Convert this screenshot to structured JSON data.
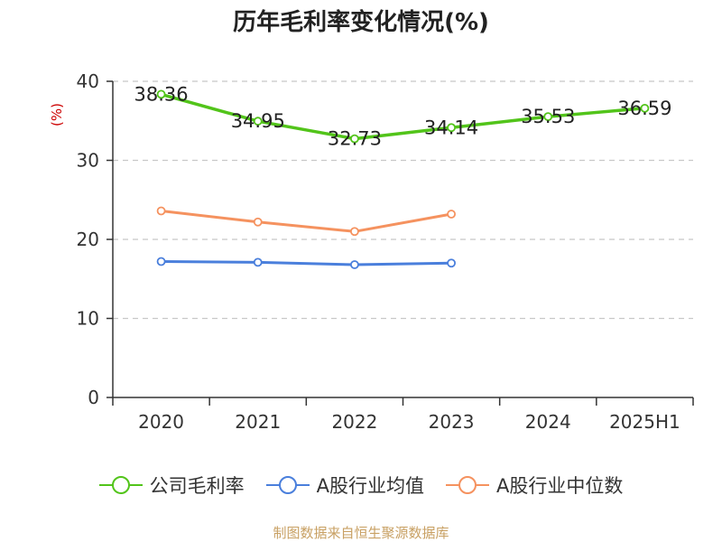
{
  "chart_data": {
    "type": "line",
    "title": "历年毛利率变化情况(%)",
    "ylabel": "(%)",
    "categories": [
      "2020",
      "2021",
      "2022",
      "2023",
      "2024",
      "2025H1"
    ],
    "ylim": [
      0,
      40
    ],
    "yticks": [
      0,
      10,
      20,
      30,
      40
    ],
    "grid": true,
    "legend_position": "bottom",
    "series": [
      {
        "name": "公司毛利率",
        "color": "#52c41a",
        "values": [
          38.36,
          34.95,
          32.73,
          34.14,
          35.53,
          36.59
        ],
        "show_labels": true
      },
      {
        "name": "A股行业均值",
        "color": "#4a7fdc",
        "values": [
          17.2,
          17.1,
          16.8,
          17.0,
          null,
          null
        ],
        "show_labels": false
      },
      {
        "name": "A股行业中位数",
        "color": "#f5925f",
        "values": [
          23.6,
          22.2,
          21.0,
          23.2,
          null,
          null
        ],
        "show_labels": false
      }
    ]
  },
  "footer": {
    "source": "制图数据来自恒生聚源数据库",
    "source_color": "#c8a063"
  },
  "colors": {
    "axis": "#333333",
    "grid": "#c8c8c8",
    "ylabel": "#cc0000"
  }
}
